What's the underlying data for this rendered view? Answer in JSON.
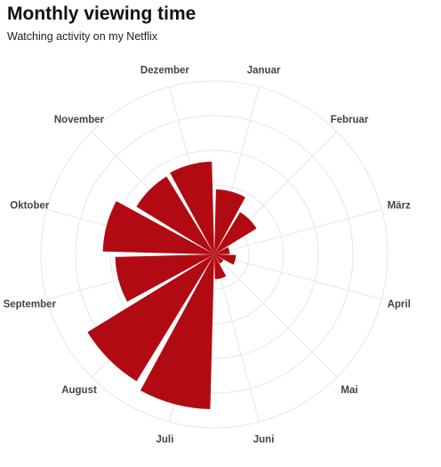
{
  "header": {
    "title": "Monthly viewing time",
    "subtitle": "Watching activity on my Netflix"
  },
  "colors": {
    "bar": "#b20a12",
    "grid": "#e6e6e6",
    "background": "#ffffff"
  },
  "chart_data": {
    "type": "bar",
    "polar": true,
    "title": "Monthly viewing time",
    "subtitle": "Watching activity on my Netflix",
    "categories": [
      "Januar",
      "Februar",
      "März",
      "April",
      "Mai",
      "Juni",
      "Juli",
      "August",
      "September",
      "Oktober",
      "November",
      "Dezember"
    ],
    "values": [
      0.42,
      0.32,
      0.1,
      0.14,
      0.07,
      0.16,
      1.0,
      0.96,
      0.64,
      0.72,
      0.59,
      0.6
    ],
    "rlim": [
      0,
      1.12
    ],
    "grid": true,
    "legend": "none"
  }
}
